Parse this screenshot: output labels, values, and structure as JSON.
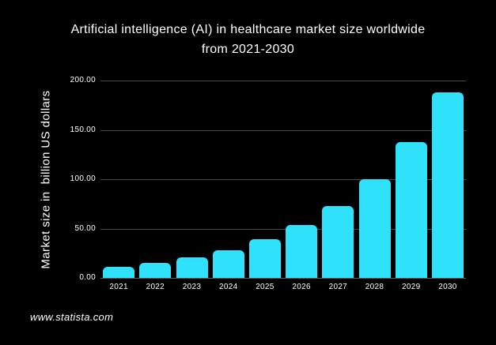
{
  "page": {
    "background": "#000000",
    "text_color": "#ffffff"
  },
  "title": {
    "line1": "Artificial intelligence (AI) in healthcare market size worldwide",
    "line2": "from 2021-2030"
  },
  "source": {
    "text": "www.statista.com"
  },
  "chart_data": {
    "type": "bar",
    "title": "Artificial intelligence (AI) in healthcare market size worldwide from 2021-2030",
    "categories": [
      "2021",
      "2022",
      "2023",
      "2024",
      "2025",
      "2026",
      "2027",
      "2028",
      "2029",
      "2030"
    ],
    "values": [
      11.1,
      15.1,
      20.8,
      28.4,
      39.0,
      53.4,
      73.1,
      100.2,
      137.3,
      188.0
    ],
    "xlabel": "",
    "ylabel": "Market size in  billion US dollars",
    "ylim": [
      0,
      200
    ],
    "yticks": [
      0,
      50,
      100,
      150,
      200
    ],
    "ytick_labels": [
      "0.00",
      "50.00",
      "100.00",
      "150.00",
      "200.00"
    ],
    "grid": true,
    "legend": false,
    "bar_color": "#2fe1fa",
    "gridline_color": "#494949",
    "background": "#000000",
    "text_color": "#ffffff"
  }
}
